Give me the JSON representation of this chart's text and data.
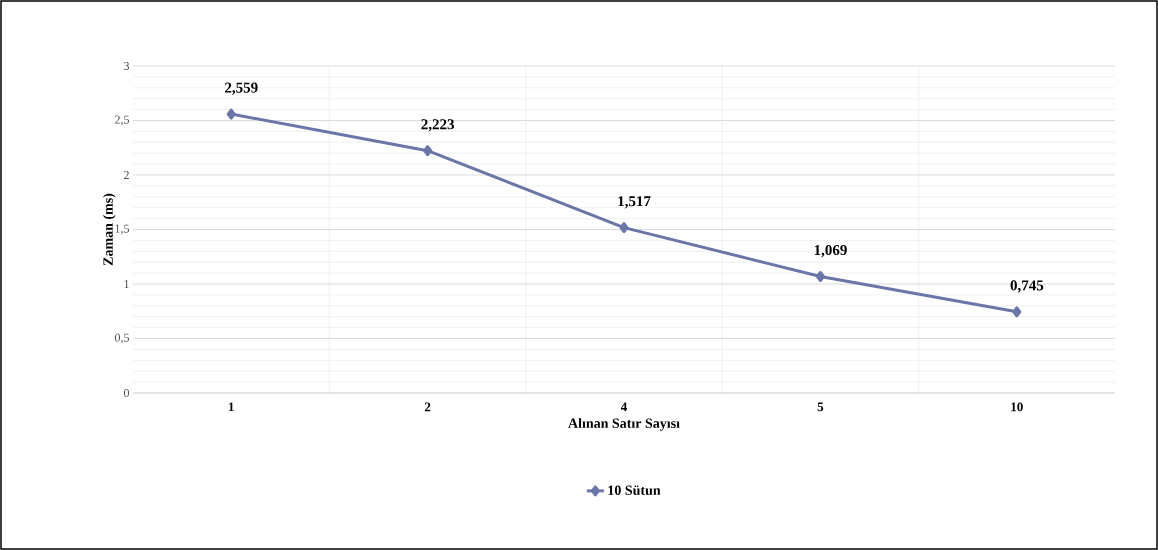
{
  "chart_data": {
    "type": "line",
    "xlabel": "Alınan Satır Sayısı",
    "ylabel": "Zaman (ms)",
    "categories": [
      "1",
      "2",
      "4",
      "5",
      "10"
    ],
    "series": [
      {
        "name": "10 Sütun",
        "color": "#6b76a8",
        "values": [
          2.559,
          2.223,
          1.517,
          1.069,
          0.745
        ]
      }
    ],
    "value_labels": [
      "2,559",
      "2,223",
      "1,517",
      "1,069",
      "0,745"
    ],
    "ylim": [
      0,
      3
    ],
    "yticks": [
      0,
      {
        "value": 0.5,
        "label": "0,5"
      },
      1,
      {
        "value": 1.5,
        "label": "1,5"
      },
      2,
      {
        "value": 2.5,
        "label": "2,5"
      },
      3
    ],
    "grid": true,
    "legend": "bottom",
    "marker": "diamond",
    "line_style": "solid"
  }
}
